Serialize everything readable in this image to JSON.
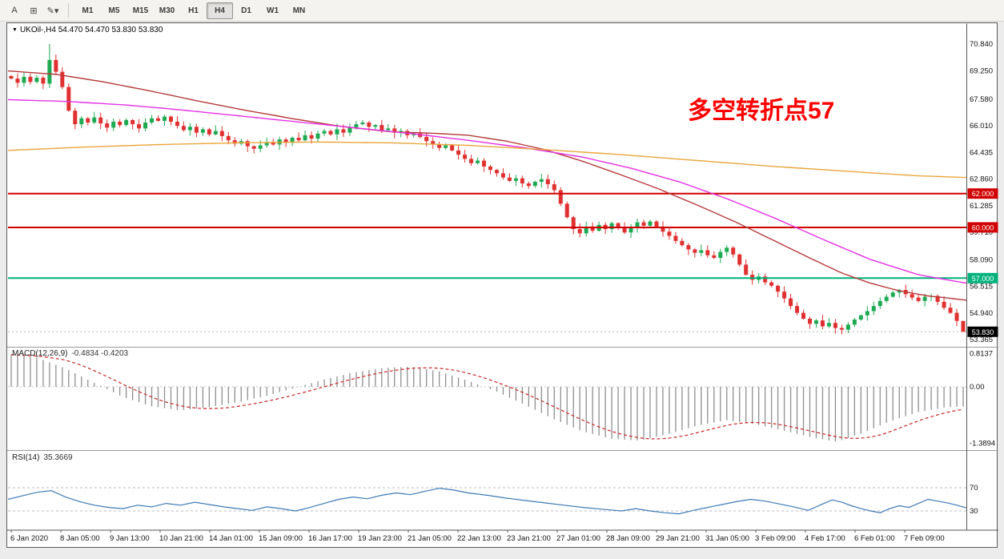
{
  "toolbar": {
    "left_tools": [
      {
        "name": "cursor-tool",
        "glyph": "A"
      },
      {
        "name": "crosshair-tool",
        "glyph": "⊞"
      },
      {
        "name": "draw-objects-tool",
        "glyph": "✎▾"
      }
    ],
    "timeframes": [
      "M1",
      "M5",
      "M15",
      "M30",
      "H1",
      "H4",
      "D1",
      "W1",
      "MN"
    ],
    "active_timeframe": "H4"
  },
  "window": {
    "title_symbol": "UKOil-,H4",
    "title_ohlc": "54.470 54.470 53.830 53.830",
    "annotation": "多空转折点57",
    "annotation_color": "#ff0000"
  },
  "chart_data": {
    "type": "candlestick",
    "symbol": "UKOil",
    "timeframe": "H4",
    "ohlc_display": {
      "open": "54.470",
      "high": "54.470",
      "low": "53.830",
      "close": "53.830"
    },
    "price_axis_labels": [
      "70.840",
      "69.250",
      "67.580",
      "66.010",
      "64.435",
      "62.860",
      "61.285",
      "59.710",
      "58.090",
      "56.515",
      "54.940",
      "53.365"
    ],
    "time_axis_labels": [
      "6 Jan 2020",
      "8 Jan 05:00",
      "9 Jan 13:00",
      "10 Jan 21:00",
      "14 Jan 01:00",
      "15 Jan 09:00",
      "16 Jan 17:00",
      "19 Jan 23:00",
      "21 Jan 05:00",
      "22 Jan 13:00",
      "23 Jan 21:00",
      "27 Jan 01:00",
      "28 Jan 09:00",
      "29 Jan 21:00",
      "31 Jan 05:00",
      "3 Feb 09:00",
      "4 Feb 17:00",
      "6 Feb 01:00",
      "7 Feb 09:00"
    ],
    "first_open": 68.95,
    "closes": [
      68.8,
      68.55,
      68.9,
      68.6,
      68.85,
      68.5,
      69.9,
      69.2,
      68.3,
      66.9,
      66.1,
      66.45,
      66.2,
      66.5,
      66.15,
      65.9,
      66.25,
      66.05,
      66.35,
      66.1,
      65.85,
      66.2,
      66.45,
      66.3,
      66.55,
      66.25,
      66.0,
      65.75,
      65.95,
      65.6,
      65.8,
      65.5,
      65.7,
      65.4,
      65.15,
      64.95,
      65.1,
      64.8,
      64.65,
      64.85,
      65.05,
      64.9,
      65.2,
      65.0,
      65.3,
      65.15,
      65.45,
      65.25,
      65.55,
      65.7,
      65.5,
      65.8,
      65.6,
      65.9,
      66.1,
      66.2,
      65.95,
      66.05,
      65.75,
      65.85,
      65.6,
      65.7,
      65.45,
      65.55,
      65.35,
      65.1,
      64.9,
      64.7,
      64.85,
      64.55,
      64.3,
      64.05,
      63.8,
      63.95,
      63.6,
      63.4,
      63.2,
      62.95,
      62.75,
      62.9,
      62.6,
      62.45,
      62.7,
      62.85,
      62.55,
      62.2,
      61.4,
      60.6,
      59.9,
      59.65,
      60.05,
      59.8,
      60.15,
      59.9,
      60.25,
      60.0,
      59.7,
      59.95,
      60.3,
      60.1,
      60.35,
      60.05,
      59.75,
      59.5,
      59.2,
      58.95,
      58.7,
      58.5,
      58.65,
      58.35,
      58.2,
      58.55,
      58.8,
      58.4,
      57.8,
      57.2,
      56.9,
      57.1,
      56.75,
      56.55,
      56.2,
      55.8,
      55.35,
      54.95,
      54.6,
      54.3,
      54.5,
      54.15,
      54.35,
      54.05,
      53.95,
      54.25,
      54.55,
      54.8,
      55.05,
      55.35,
      55.65,
      55.9,
      56.15,
      56.3,
      56.05,
      55.85,
      55.65,
      55.9,
      55.95,
      55.6,
      55.25,
      54.95,
      54.47,
      53.83
    ],
    "spike": {
      "index": 6,
      "high": 70.84
    },
    "colors": {
      "up": "#1daa52",
      "down": "#e03030"
    },
    "hlines": [
      {
        "price": 62.0,
        "label": "62.000",
        "color": "#d10000"
      },
      {
        "price": 60.0,
        "label": "60.000",
        "color": "#d10000"
      },
      {
        "price": 57.0,
        "label": "57.000",
        "color": "#00b27a"
      }
    ],
    "current_price": {
      "value": 53.83,
      "label": "53.830",
      "badge_color": "#000000"
    },
    "moving_averages": [
      {
        "name": "ma-fast-red",
        "color": "#b63a3a",
        "points": [
          [
            0,
            69.25
          ],
          [
            0.05,
            69.05
          ],
          [
            0.1,
            68.6
          ],
          [
            0.15,
            68.05
          ],
          [
            0.2,
            67.45
          ],
          [
            0.25,
            66.9
          ],
          [
            0.3,
            66.4
          ],
          [
            0.35,
            65.95
          ],
          [
            0.4,
            65.65
          ],
          [
            0.45,
            65.55
          ],
          [
            0.48,
            65.45
          ],
          [
            0.52,
            65.1
          ],
          [
            0.56,
            64.6
          ],
          [
            0.6,
            63.9
          ],
          [
            0.64,
            63.1
          ],
          [
            0.68,
            62.25
          ],
          [
            0.72,
            61.3
          ],
          [
            0.76,
            60.3
          ],
          [
            0.8,
            59.2
          ],
          [
            0.84,
            58.1
          ],
          [
            0.87,
            57.3
          ],
          [
            0.9,
            56.7
          ],
          [
            0.93,
            56.25
          ],
          [
            0.96,
            55.95
          ],
          [
            1,
            55.7
          ]
        ]
      },
      {
        "name": "ma-mid-magenta",
        "color": "#e531e5",
        "points": [
          [
            0,
            67.55
          ],
          [
            0.06,
            67.45
          ],
          [
            0.12,
            67.25
          ],
          [
            0.18,
            66.95
          ],
          [
            0.24,
            66.6
          ],
          [
            0.3,
            66.25
          ],
          [
            0.36,
            65.9
          ],
          [
            0.42,
            65.55
          ],
          [
            0.48,
            65.15
          ],
          [
            0.54,
            64.7
          ],
          [
            0.6,
            64.15
          ],
          [
            0.65,
            63.5
          ],
          [
            0.7,
            62.7
          ],
          [
            0.75,
            61.7
          ],
          [
            0.8,
            60.55
          ],
          [
            0.85,
            59.3
          ],
          [
            0.9,
            58.1
          ],
          [
            0.95,
            57.2
          ],
          [
            1,
            56.7
          ]
        ]
      },
      {
        "name": "ma-slow-orange",
        "color": "#eaa63c",
        "points": [
          [
            0,
            64.55
          ],
          [
            0.08,
            64.75
          ],
          [
            0.16,
            64.9
          ],
          [
            0.24,
            65.0
          ],
          [
            0.32,
            65.05
          ],
          [
            0.4,
            65.0
          ],
          [
            0.48,
            64.85
          ],
          [
            0.56,
            64.6
          ],
          [
            0.64,
            64.3
          ],
          [
            0.72,
            63.95
          ],
          [
            0.8,
            63.6
          ],
          [
            0.88,
            63.3
          ],
          [
            0.95,
            63.05
          ],
          [
            1,
            62.95
          ]
        ]
      }
    ]
  },
  "macd": {
    "name": "MACD(12,26,9)",
    "values": "-0.4834 -0.4203",
    "axis_labels": [
      {
        "text": "0.8137",
        "value": 0.8137
      },
      {
        "text": "0.00",
        "value": 0
      },
      {
        "text": "-1.3894",
        "value": -1.3894
      }
    ],
    "hist_color": "#8f8f8f",
    "signal_color": "#cc2626",
    "points": [
      [
        0,
        0.8
      ],
      [
        0.03,
        0.72
      ],
      [
        0.06,
        0.45
      ],
      [
        0.09,
        0.1
      ],
      [
        0.12,
        -0.25
      ],
      [
        0.15,
        -0.48
      ],
      [
        0.18,
        -0.58
      ],
      [
        0.21,
        -0.5
      ],
      [
        0.24,
        -0.38
      ],
      [
        0.27,
        -0.22
      ],
      [
        0.3,
        -0.02
      ],
      [
        0.33,
        0.18
      ],
      [
        0.36,
        0.35
      ],
      [
        0.39,
        0.46
      ],
      [
        0.42,
        0.5
      ],
      [
        0.45,
        0.38
      ],
      [
        0.48,
        0.15
      ],
      [
        0.51,
        -0.12
      ],
      [
        0.54,
        -0.45
      ],
      [
        0.57,
        -0.8
      ],
      [
        0.6,
        -1.1
      ],
      [
        0.63,
        -1.28
      ],
      [
        0.66,
        -1.32
      ],
      [
        0.69,
        -1.15
      ],
      [
        0.72,
        -0.95
      ],
      [
        0.75,
        -0.82
      ],
      [
        0.78,
        -0.92
      ],
      [
        0.81,
        -1.08
      ],
      [
        0.84,
        -1.25
      ],
      [
        0.865,
        -1.35
      ],
      [
        0.89,
        -1.15
      ],
      [
        0.92,
        -0.85
      ],
      [
        0.95,
        -0.62
      ],
      [
        0.98,
        -0.5
      ],
      [
        1,
        -0.4834
      ]
    ]
  },
  "rsi": {
    "name": "RSI(14)",
    "value": "35.3669",
    "color": "#3d7ab8",
    "levels": [
      {
        "text": "70",
        "value": 70
      },
      {
        "text": "30",
        "value": 30
      }
    ],
    "points": [
      [
        0,
        50
      ],
      [
        0.015,
        56
      ],
      [
        0.03,
        62
      ],
      [
        0.045,
        65
      ],
      [
        0.06,
        54
      ],
      [
        0.075,
        46
      ],
      [
        0.09,
        40
      ],
      [
        0.105,
        36
      ],
      [
        0.12,
        34
      ],
      [
        0.135,
        40
      ],
      [
        0.15,
        37
      ],
      [
        0.165,
        43
      ],
      [
        0.18,
        40
      ],
      [
        0.195,
        45
      ],
      [
        0.21,
        41
      ],
      [
        0.225,
        37
      ],
      [
        0.24,
        34
      ],
      [
        0.255,
        31
      ],
      [
        0.27,
        37
      ],
      [
        0.285,
        34
      ],
      [
        0.3,
        30
      ],
      [
        0.315,
        36
      ],
      [
        0.33,
        43
      ],
      [
        0.345,
        50
      ],
      [
        0.36,
        54
      ],
      [
        0.375,
        51
      ],
      [
        0.39,
        57
      ],
      [
        0.405,
        61
      ],
      [
        0.42,
        58
      ],
      [
        0.435,
        64
      ],
      [
        0.45,
        69
      ],
      [
        0.465,
        66
      ],
      [
        0.48,
        61
      ],
      [
        0.5,
        57
      ],
      [
        0.52,
        52
      ],
      [
        0.54,
        48
      ],
      [
        0.56,
        44
      ],
      [
        0.58,
        40
      ],
      [
        0.6,
        36
      ],
      [
        0.62,
        33
      ],
      [
        0.64,
        30
      ],
      [
        0.655,
        34
      ],
      [
        0.67,
        30
      ],
      [
        0.685,
        27
      ],
      [
        0.7,
        25
      ],
      [
        0.715,
        31
      ],
      [
        0.73,
        36
      ],
      [
        0.745,
        41
      ],
      [
        0.76,
        46
      ],
      [
        0.775,
        50
      ],
      [
        0.79,
        47
      ],
      [
        0.805,
        42
      ],
      [
        0.82,
        37
      ],
      [
        0.835,
        31
      ],
      [
        0.85,
        42
      ],
      [
        0.86,
        49
      ],
      [
        0.87,
        45
      ],
      [
        0.88,
        39
      ],
      [
        0.89,
        34
      ],
      [
        0.9,
        30
      ],
      [
        0.91,
        27
      ],
      [
        0.92,
        34
      ],
      [
        0.93,
        39
      ],
      [
        0.94,
        36
      ],
      [
        0.95,
        43
      ],
      [
        0.96,
        50
      ],
      [
        0.97,
        47
      ],
      [
        0.98,
        44
      ],
      [
        0.99,
        40
      ],
      [
        1,
        35.37
      ]
    ]
  }
}
